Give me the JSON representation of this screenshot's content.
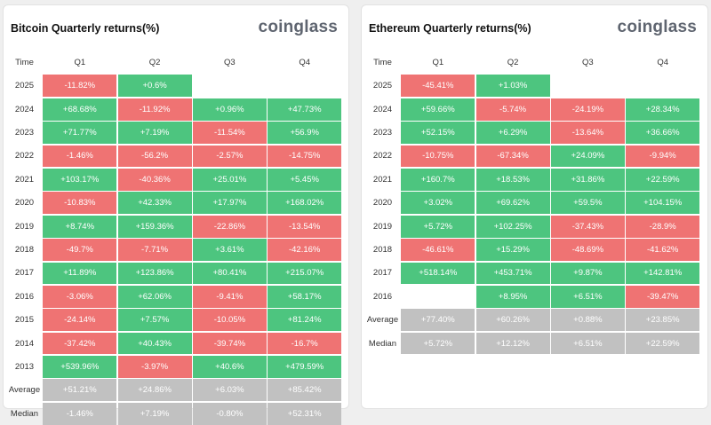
{
  "colors": {
    "positive": "#4dc57f",
    "negative": "#ef7373",
    "stat": "#c1c1c1",
    "brand": "#5f6570"
  },
  "chart_data": [
    {
      "type": "table",
      "title": "Bitcoin Quarterly returns(%)",
      "brand": "coinglass",
      "columns": [
        "Time",
        "Q1",
        "Q2",
        "Q3",
        "Q4"
      ],
      "rows": [
        {
          "label": "2025",
          "values": [
            "-11.82%",
            "+0.6%",
            "",
            ""
          ]
        },
        {
          "label": "2024",
          "values": [
            "+68.68%",
            "-11.92%",
            "+0.96%",
            "+47.73%"
          ]
        },
        {
          "label": "2023",
          "values": [
            "+71.77%",
            "+7.19%",
            "-11.54%",
            "+56.9%"
          ]
        },
        {
          "label": "2022",
          "values": [
            "-1.46%",
            "-56.2%",
            "-2.57%",
            "-14.75%"
          ]
        },
        {
          "label": "2021",
          "values": [
            "+103.17%",
            "-40.36%",
            "+25.01%",
            "+5.45%"
          ]
        },
        {
          "label": "2020",
          "values": [
            "-10.83%",
            "+42.33%",
            "+17.97%",
            "+168.02%"
          ]
        },
        {
          "label": "2019",
          "values": [
            "+8.74%",
            "+159.36%",
            "-22.86%",
            "-13.54%"
          ]
        },
        {
          "label": "2018",
          "values": [
            "-49.7%",
            "-7.71%",
            "+3.61%",
            "-42.16%"
          ]
        },
        {
          "label": "2017",
          "values": [
            "+11.89%",
            "+123.86%",
            "+80.41%",
            "+215.07%"
          ]
        },
        {
          "label": "2016",
          "values": [
            "-3.06%",
            "+62.06%",
            "-9.41%",
            "+58.17%"
          ]
        },
        {
          "label": "2015",
          "values": [
            "-24.14%",
            "+7.57%",
            "-10.05%",
            "+81.24%"
          ]
        },
        {
          "label": "2014",
          "values": [
            "-37.42%",
            "+40.43%",
            "-39.74%",
            "-16.7%"
          ]
        },
        {
          "label": "2013",
          "values": [
            "+539.96%",
            "-3.97%",
            "+40.6%",
            "+479.59%"
          ]
        },
        {
          "label": "Average",
          "stat": true,
          "values": [
            "+51.21%",
            "+24.86%",
            "+6.03%",
            "+85.42%"
          ]
        },
        {
          "label": "Median",
          "stat": true,
          "values": [
            "-1.46%",
            "+7.19%",
            "-0.80%",
            "+52.31%"
          ]
        }
      ]
    },
    {
      "type": "table",
      "title": "Ethereum Quarterly returns(%)",
      "brand": "coinglass",
      "columns": [
        "Time",
        "Q1",
        "Q2",
        "Q3",
        "Q4"
      ],
      "rows": [
        {
          "label": "2025",
          "values": [
            "-45.41%",
            "+1.03%",
            "",
            ""
          ]
        },
        {
          "label": "2024",
          "values": [
            "+59.66%",
            "-5.74%",
            "-24.19%",
            "+28.34%"
          ]
        },
        {
          "label": "2023",
          "values": [
            "+52.15%",
            "+6.29%",
            "-13.64%",
            "+36.66%"
          ]
        },
        {
          "label": "2022",
          "values": [
            "-10.75%",
            "-67.34%",
            "+24.09%",
            "-9.94%"
          ]
        },
        {
          "label": "2021",
          "values": [
            "+160.7%",
            "+18.53%",
            "+31.86%",
            "+22.59%"
          ]
        },
        {
          "label": "2020",
          "values": [
            "+3.02%",
            "+69.62%",
            "+59.5%",
            "+104.15%"
          ]
        },
        {
          "label": "2019",
          "values": [
            "+5.72%",
            "+102.25%",
            "-37.43%",
            "-28.9%"
          ]
        },
        {
          "label": "2018",
          "values": [
            "-46.61%",
            "+15.29%",
            "-48.69%",
            "-41.62%"
          ]
        },
        {
          "label": "2017",
          "values": [
            "+518.14%",
            "+453.71%",
            "+9.87%",
            "+142.81%"
          ]
        },
        {
          "label": "2016",
          "values": [
            "",
            "+8.95%",
            "+6.51%",
            "-39.47%"
          ]
        },
        {
          "label": "Average",
          "stat": true,
          "values": [
            "+77.40%",
            "+60.26%",
            "+0.88%",
            "+23.85%"
          ]
        },
        {
          "label": "Median",
          "stat": true,
          "values": [
            "+5.72%",
            "+12.12%",
            "+6.51%",
            "+22.59%"
          ]
        }
      ]
    }
  ]
}
